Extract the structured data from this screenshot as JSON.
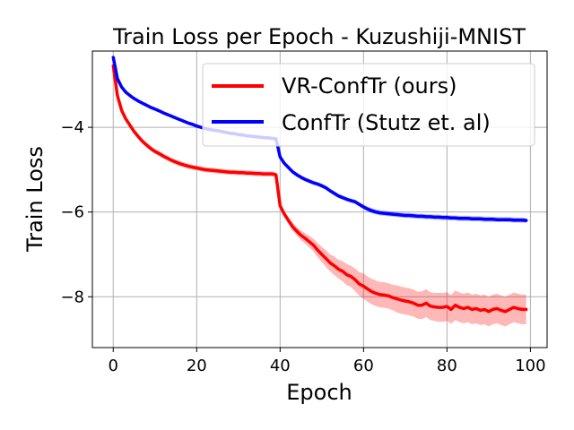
{
  "chart_data": {
    "type": "line",
    "title": "Train Loss per Epoch - Kuzushiji-MNIST",
    "xlabel": "Epoch",
    "ylabel": "Train Loss",
    "xlim": [
      -5,
      104
    ],
    "ylim": [
      -9.2,
      -2.2
    ],
    "xticks": [
      0,
      20,
      40,
      60,
      80,
      100
    ],
    "yticks": [
      -8,
      -6,
      -4
    ],
    "xtick_labels": [
      "0",
      "20",
      "40",
      "60",
      "80",
      "100"
    ],
    "ytick_labels": [
      "−8",
      "−6",
      "−4"
    ],
    "grid": true,
    "legend_position": "top-right",
    "series": [
      {
        "name": "VR-ConfTr (ours)",
        "color": "#ff0000",
        "x": [
          0,
          1,
          2,
          3,
          4,
          5,
          6,
          7,
          8,
          9,
          10,
          11,
          12,
          13,
          14,
          15,
          16,
          17,
          18,
          19,
          20,
          21,
          22,
          23,
          24,
          25,
          26,
          27,
          28,
          29,
          30,
          31,
          32,
          33,
          34,
          35,
          36,
          37,
          38,
          39,
          40,
          41,
          42,
          43,
          44,
          45,
          46,
          47,
          48,
          49,
          50,
          51,
          52,
          53,
          54,
          55,
          56,
          57,
          58,
          59,
          60,
          61,
          62,
          63,
          64,
          65,
          66,
          67,
          68,
          69,
          70,
          71,
          72,
          73,
          74,
          75,
          76,
          77,
          78,
          79,
          80,
          81,
          82,
          83,
          84,
          85,
          86,
          87,
          88,
          89,
          90,
          91,
          92,
          93,
          94,
          95,
          96,
          97,
          98,
          99
        ],
        "y": [
          -2.55,
          -3.25,
          -3.6,
          -3.8,
          -3.95,
          -4.1,
          -4.22,
          -4.33,
          -4.42,
          -4.5,
          -4.57,
          -4.62,
          -4.68,
          -4.73,
          -4.78,
          -4.82,
          -4.86,
          -4.89,
          -4.92,
          -4.94,
          -4.96,
          -4.98,
          -5.0,
          -5.01,
          -5.02,
          -5.03,
          -5.04,
          -5.05,
          -5.06,
          -5.06,
          -5.07,
          -5.07,
          -5.08,
          -5.08,
          -5.09,
          -5.09,
          -5.1,
          -5.1,
          -5.1,
          -5.12,
          -5.85,
          -6.05,
          -6.2,
          -6.35,
          -6.45,
          -6.55,
          -6.62,
          -6.7,
          -6.78,
          -6.9,
          -7.0,
          -7.1,
          -7.2,
          -7.27,
          -7.35,
          -7.4,
          -7.48,
          -7.52,
          -7.6,
          -7.7,
          -7.75,
          -7.82,
          -7.88,
          -7.92,
          -7.95,
          -7.96,
          -7.98,
          -8.02,
          -8.05,
          -8.08,
          -8.1,
          -8.12,
          -8.15,
          -8.2,
          -8.2,
          -8.15,
          -8.22,
          -8.24,
          -8.25,
          -8.25,
          -8.23,
          -8.3,
          -8.2,
          -8.25,
          -8.28,
          -8.25,
          -8.3,
          -8.28,
          -8.32,
          -8.3,
          -8.35,
          -8.3,
          -8.28,
          -8.32,
          -8.35,
          -8.3,
          -8.25,
          -8.28,
          -8.3,
          -8.3
        ],
        "spread": [
          0.05,
          0.06,
          0.06,
          0.06,
          0.06,
          0.06,
          0.06,
          0.06,
          0.06,
          0.06,
          0.06,
          0.06,
          0.06,
          0.06,
          0.06,
          0.06,
          0.06,
          0.06,
          0.06,
          0.06,
          0.06,
          0.06,
          0.06,
          0.06,
          0.06,
          0.06,
          0.06,
          0.06,
          0.06,
          0.06,
          0.06,
          0.06,
          0.06,
          0.06,
          0.06,
          0.06,
          0.06,
          0.06,
          0.06,
          0.06,
          0.08,
          0.08,
          0.08,
          0.1,
          0.1,
          0.12,
          0.12,
          0.14,
          0.15,
          0.17,
          0.18,
          0.2,
          0.2,
          0.22,
          0.22,
          0.24,
          0.25,
          0.25,
          0.27,
          0.28,
          0.3,
          0.3,
          0.3,
          0.3,
          0.3,
          0.3,
          0.3,
          0.3,
          0.32,
          0.32,
          0.32,
          0.32,
          0.32,
          0.32,
          0.33,
          0.33,
          0.33,
          0.33,
          0.34,
          0.34,
          0.34,
          0.34,
          0.35,
          0.35,
          0.35,
          0.35,
          0.35,
          0.35,
          0.35,
          0.35,
          0.35,
          0.35,
          0.35,
          0.35,
          0.35,
          0.35,
          0.35,
          0.35,
          0.35,
          0.35
        ]
      },
      {
        "name": "ConfTr (Stutz et. al)",
        "color": "#0000ff",
        "x": [
          0,
          1,
          2,
          3,
          4,
          5,
          6,
          7,
          8,
          9,
          10,
          11,
          12,
          13,
          14,
          15,
          16,
          17,
          18,
          19,
          20,
          21,
          22,
          23,
          24,
          25,
          26,
          27,
          28,
          29,
          30,
          31,
          32,
          33,
          34,
          35,
          36,
          37,
          38,
          39,
          40,
          41,
          42,
          43,
          44,
          45,
          46,
          47,
          48,
          49,
          50,
          51,
          52,
          53,
          54,
          55,
          56,
          57,
          58,
          59,
          60,
          61,
          62,
          63,
          64,
          65,
          66,
          67,
          68,
          69,
          70,
          71,
          72,
          73,
          74,
          75,
          76,
          77,
          78,
          79,
          80,
          81,
          82,
          83,
          84,
          85,
          86,
          87,
          88,
          89,
          90,
          91,
          92,
          93,
          94,
          95,
          96,
          97,
          98,
          99
        ],
        "y": [
          -2.35,
          -2.85,
          -3.05,
          -3.17,
          -3.25,
          -3.32,
          -3.38,
          -3.43,
          -3.48,
          -3.53,
          -3.57,
          -3.61,
          -3.66,
          -3.7,
          -3.74,
          -3.78,
          -3.82,
          -3.86,
          -3.9,
          -3.93,
          -3.97,
          -4.0,
          -4.03,
          -4.05,
          -4.07,
          -4.08,
          -4.1,
          -4.12,
          -4.14,
          -4.15,
          -4.17,
          -4.18,
          -4.2,
          -4.21,
          -4.22,
          -4.23,
          -4.24,
          -4.25,
          -4.26,
          -4.27,
          -4.7,
          -4.85,
          -4.95,
          -5.05,
          -5.12,
          -5.18,
          -5.23,
          -5.27,
          -5.31,
          -5.34,
          -5.38,
          -5.43,
          -5.5,
          -5.56,
          -5.62,
          -5.66,
          -5.7,
          -5.73,
          -5.76,
          -5.82,
          -5.88,
          -5.93,
          -5.97,
          -6.0,
          -6.02,
          -6.03,
          -6.04,
          -6.05,
          -6.06,
          -6.07,
          -6.08,
          -6.08,
          -6.09,
          -6.1,
          -6.1,
          -6.11,
          -6.11,
          -6.12,
          -6.12,
          -6.13,
          -6.13,
          -6.14,
          -6.14,
          -6.15,
          -6.15,
          -6.15,
          -6.16,
          -6.16,
          -6.16,
          -6.17,
          -6.17,
          -6.17,
          -6.18,
          -6.18,
          -6.18,
          -6.18,
          -6.19,
          -6.19,
          -6.19,
          -6.2
        ],
        "spread": [
          0.04,
          0.04,
          0.04,
          0.04,
          0.04,
          0.04,
          0.04,
          0.04,
          0.04,
          0.04,
          0.04,
          0.04,
          0.04,
          0.04,
          0.04,
          0.04,
          0.04,
          0.04,
          0.04,
          0.04,
          0.04,
          0.04,
          0.04,
          0.04,
          0.04,
          0.04,
          0.04,
          0.04,
          0.04,
          0.04,
          0.04,
          0.04,
          0.04,
          0.04,
          0.04,
          0.04,
          0.04,
          0.04,
          0.04,
          0.04,
          0.05,
          0.05,
          0.05,
          0.05,
          0.05,
          0.05,
          0.05,
          0.05,
          0.05,
          0.05,
          0.05,
          0.05,
          0.05,
          0.05,
          0.05,
          0.05,
          0.05,
          0.05,
          0.05,
          0.05,
          0.06,
          0.06,
          0.06,
          0.06,
          0.06,
          0.06,
          0.06,
          0.06,
          0.06,
          0.06,
          0.06,
          0.06,
          0.06,
          0.06,
          0.06,
          0.06,
          0.06,
          0.06,
          0.06,
          0.06,
          0.06,
          0.06,
          0.06,
          0.06,
          0.06,
          0.06,
          0.06,
          0.06,
          0.06,
          0.06,
          0.06,
          0.06,
          0.06,
          0.06,
          0.06,
          0.06,
          0.06,
          0.06,
          0.06,
          0.06
        ]
      }
    ]
  }
}
